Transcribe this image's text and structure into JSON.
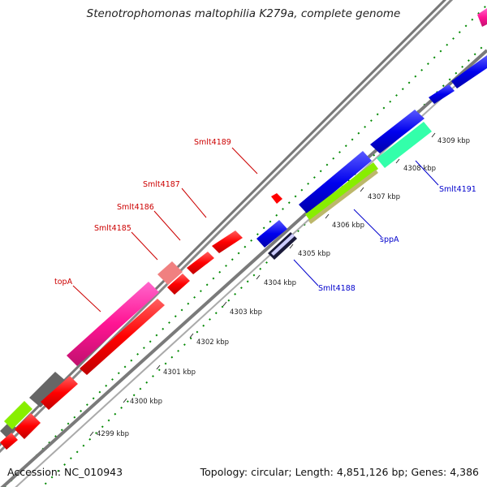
{
  "title": "Stenotrophomonas maltophilia K279a, complete genome",
  "footer": {
    "accession": "Accession: NC_010943",
    "summary": "Topology: circular; Length: 4,851,126 bp; Genes: 4,386"
  },
  "ticks": [
    "4299 kbp",
    "4300 kbp",
    "4301 kbp",
    "4302 kbp",
    "4303 kbp",
    "4304 kbp",
    "4305 kbp",
    "4306 kbp",
    "4307 kbp",
    "4308 kbp",
    "4309 kbp"
  ],
  "gene_labels": {
    "smlt4189": "Smlt4189",
    "smlt4187": "Smlt4187",
    "smlt4186": "Smlt4186",
    "smlt4185": "Smlt4185",
    "topA": "topA",
    "smlt4188": "Smlt4188",
    "sppA": "sppA",
    "smlt4191": "Smlt4191"
  },
  "colors": {
    "forward_red": "#ff0000",
    "reverse_blue": "#0000ee",
    "magenta": "#ff1493",
    "pink": "#f08080",
    "gray": "#666666",
    "lime": "#88ee00",
    "aqua": "#33ffaa",
    "olive": "#bdb76b",
    "label_red": "#cc0000",
    "label_blue": "#0000cc",
    "dot_green": "#008800"
  }
}
